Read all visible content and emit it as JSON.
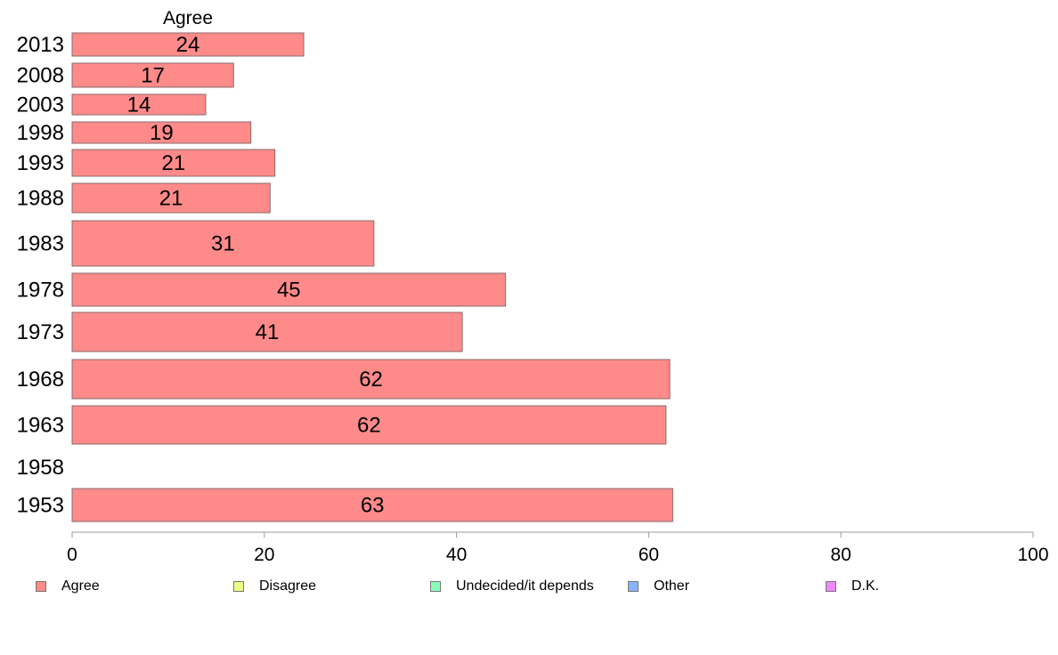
{
  "chart_data": {
    "type": "bar",
    "orientation": "horizontal",
    "title": "Agree",
    "categories": [
      "2013",
      "2008",
      "2003",
      "1998",
      "1993",
      "1988",
      "1983",
      "1978",
      "1973",
      "1968",
      "1963",
      "1958",
      "1953"
    ],
    "series": [
      {
        "name": "Agree",
        "color": "#ff8a8a",
        "values": [
          24.1,
          16.8,
          13.9,
          18.6,
          21.1,
          20.6,
          31.4,
          45.1,
          40.6,
          62.2,
          61.8,
          null,
          62.5
        ],
        "labels": [
          "24",
          "17",
          "14",
          "19",
          "21",
          "21",
          "31",
          "45",
          "41",
          "62",
          "62",
          "",
          "63"
        ]
      }
    ],
    "xlim": [
      0,
      100
    ],
    "xticks": [
      "0",
      "20",
      "40",
      "60",
      "80",
      "100"
    ],
    "grid": false,
    "legend_position": "bottom"
  },
  "legend": [
    {
      "label": "Agree",
      "color": "#ff8a8a"
    },
    {
      "label": "Disagree",
      "color": "#eeff88"
    },
    {
      "label": "Undecided/it depends",
      "color": "#88ffbb"
    },
    {
      "label": "Other",
      "color": "#88b4ff"
    },
    {
      "label": "D.K.",
      "color": "#ee88ff"
    }
  ]
}
